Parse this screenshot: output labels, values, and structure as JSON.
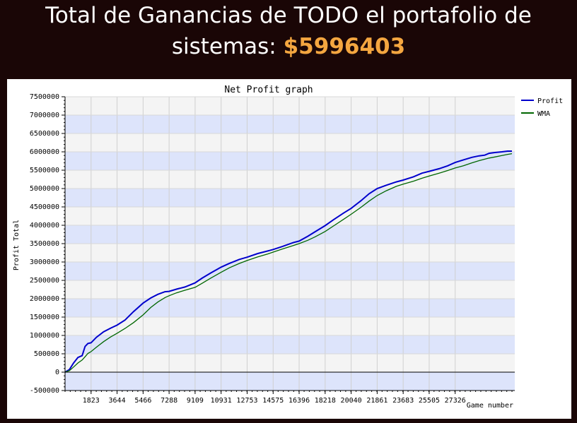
{
  "headline": {
    "line1": "Total de Ganancias de TODO el portafolio de",
    "line2_prefix": "sistemas: ",
    "amount": "$5996403"
  },
  "colors": {
    "amount": "#f4a640",
    "profit": "#0000cc",
    "wma": "#006600",
    "band": "#dde4fb"
  },
  "chart_data": {
    "type": "line",
    "title": "Net Profit graph",
    "xlabel": "Game number",
    "ylabel": "Profit Total",
    "xlim": [
      0,
      31500
    ],
    "ylim": [
      -500000,
      7500000
    ],
    "yticks": [
      -500000,
      0,
      500000,
      1000000,
      1500000,
      2000000,
      2500000,
      3000000,
      3500000,
      4000000,
      4500000,
      5000000,
      5500000,
      6000000,
      6500000,
      7000000,
      7500000
    ],
    "xticks": [
      1823,
      3644,
      5466,
      7288,
      9109,
      10931,
      12753,
      14575,
      16396,
      18218,
      20040,
      21861,
      23683,
      25505,
      27326
    ],
    "legend_position": "top-right",
    "series": [
      {
        "name": "Profit",
        "x": [
          0,
          300,
          600,
          900,
          1200,
          1400,
          1600,
          1823,
          2200,
          2700,
          3200,
          3644,
          4200,
          4800,
          5466,
          6000,
          6500,
          7000,
          7288,
          7800,
          8400,
          9109,
          9600,
          10200,
          10931,
          11500,
          12200,
          12753,
          13500,
          14200,
          14575,
          15200,
          16000,
          16396,
          17000,
          17500,
          18218,
          18800,
          19500,
          20040,
          20700,
          21300,
          21861,
          22500,
          23200,
          23683,
          24400,
          25000,
          25505,
          26200,
          26800,
          27326,
          27900,
          28500,
          29000,
          29400,
          29700,
          30100,
          30600,
          31000,
          31300
        ],
        "y": [
          0,
          70000,
          250000,
          400000,
          450000,
          700000,
          780000,
          800000,
          950000,
          1100000,
          1200000,
          1280000,
          1420000,
          1650000,
          1880000,
          2020000,
          2120000,
          2190000,
          2200000,
          2260000,
          2320000,
          2430000,
          2560000,
          2700000,
          2860000,
          2960000,
          3070000,
          3130000,
          3230000,
          3300000,
          3340000,
          3420000,
          3530000,
          3570000,
          3700000,
          3820000,
          3990000,
          4150000,
          4330000,
          4460000,
          4660000,
          4860000,
          5000000,
          5090000,
          5180000,
          5230000,
          5320000,
          5420000,
          5470000,
          5540000,
          5620000,
          5710000,
          5780000,
          5850000,
          5890000,
          5910000,
          5960000,
          5980000,
          6000000,
          6020000,
          6020000
        ]
      },
      {
        "name": "WMA",
        "x": [
          0,
          300,
          600,
          900,
          1200,
          1400,
          1600,
          1823,
          2200,
          2700,
          3200,
          3644,
          4200,
          4800,
          5466,
          6000,
          6500,
          7000,
          7288,
          7800,
          8400,
          9109,
          9600,
          10200,
          10931,
          11500,
          12200,
          12753,
          13500,
          14200,
          14575,
          15200,
          16000,
          16396,
          17000,
          17500,
          18218,
          18800,
          19500,
          20040,
          20700,
          21300,
          21861,
          22500,
          23200,
          23683,
          24400,
          25000,
          25505,
          26200,
          26800,
          27326,
          27900,
          28500,
          29000,
          29400,
          29700,
          30100,
          30600,
          31000,
          31300
        ],
        "y": [
          0,
          40000,
          140000,
          250000,
          330000,
          420000,
          510000,
          560000,
          680000,
          830000,
          960000,
          1060000,
          1190000,
          1350000,
          1560000,
          1760000,
          1910000,
          2030000,
          2080000,
          2160000,
          2230000,
          2310000,
          2420000,
          2560000,
          2720000,
          2840000,
          2960000,
          3040000,
          3140000,
          3220000,
          3270000,
          3350000,
          3450000,
          3500000,
          3590000,
          3680000,
          3830000,
          3980000,
          4160000,
          4300000,
          4480000,
          4660000,
          4810000,
          4940000,
          5060000,
          5120000,
          5200000,
          5280000,
          5340000,
          5420000,
          5490000,
          5560000,
          5620000,
          5700000,
          5760000,
          5800000,
          5830000,
          5860000,
          5900000,
          5930000,
          5950000
        ]
      }
    ]
  }
}
